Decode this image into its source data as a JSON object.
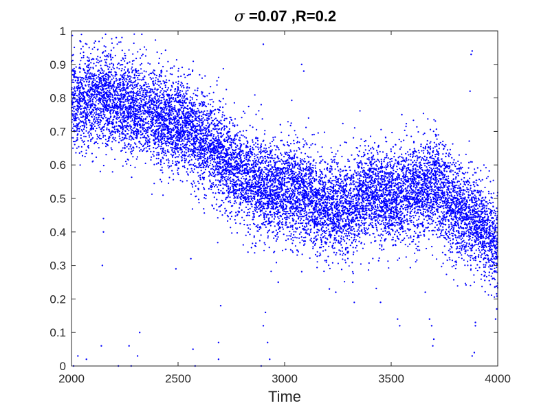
{
  "chart_data": {
    "type": "scatter",
    "title_symbol": "σ",
    "title_rest": " =0.07 ,R=0.2",
    "xlabel": "Time",
    "ylabel": "",
    "xlim": [
      2000,
      4000
    ],
    "ylim": [
      0,
      1
    ],
    "xticks": [
      "2000",
      "2500",
      "3000",
      "3500",
      "4000"
    ],
    "yticks": [
      "0",
      "0.1",
      "0.2",
      "0.3",
      "0.4",
      "0.5",
      "0.6",
      "0.7",
      "0.8",
      "0.9",
      "1"
    ],
    "grid": false,
    "marker_color": "#0000ff",
    "trend": {
      "x": [
        2000,
        2150,
        2250,
        2350,
        2500,
        2650,
        2800,
        2900,
        3000,
        3100,
        3200,
        3300,
        3400,
        3500,
        3600,
        3700,
        3800,
        3900,
        4000
      ],
      "y": [
        0.79,
        0.8,
        0.78,
        0.76,
        0.72,
        0.66,
        0.57,
        0.53,
        0.53,
        0.51,
        0.47,
        0.47,
        0.52,
        0.5,
        0.51,
        0.54,
        0.47,
        0.43,
        0.36
      ]
    },
    "spread": 0.07,
    "point_count": 12000,
    "outliers": [
      {
        "x": 2010,
        "y": 0.0
      },
      {
        "x": 2030,
        "y": 0.03
      },
      {
        "x": 2070,
        "y": 0.02
      },
      {
        "x": 2140,
        "y": 0.06
      },
      {
        "x": 2145,
        "y": 0.3
      },
      {
        "x": 2150,
        "y": 0.44
      },
      {
        "x": 2150,
        "y": 0.4
      },
      {
        "x": 2220,
        "y": 0.0
      },
      {
        "x": 2270,
        "y": 0.06
      },
      {
        "x": 2280,
        "y": 0.0
      },
      {
        "x": 2310,
        "y": 0.03
      },
      {
        "x": 2320,
        "y": 0.1
      },
      {
        "x": 2490,
        "y": 0.29
      },
      {
        "x": 2560,
        "y": 0.32
      },
      {
        "x": 2570,
        "y": 0.05
      },
      {
        "x": 2580,
        "y": 0.0
      },
      {
        "x": 2690,
        "y": 0.07
      },
      {
        "x": 2700,
        "y": 0.18
      },
      {
        "x": 2690,
        "y": 0.02
      },
      {
        "x": 2890,
        "y": 0.0
      },
      {
        "x": 2900,
        "y": 0.12
      },
      {
        "x": 2910,
        "y": 0.16
      },
      {
        "x": 2920,
        "y": 0.07
      },
      {
        "x": 2930,
        "y": 0.02
      },
      {
        "x": 2970,
        "y": 0.25
      },
      {
        "x": 2900,
        "y": 0.96
      },
      {
        "x": 2890,
        "y": 0.78
      },
      {
        "x": 3090,
        "y": 0.88
      },
      {
        "x": 3080,
        "y": 0.9
      },
      {
        "x": 2980,
        "y": 0.72
      },
      {
        "x": 3210,
        "y": 0.23
      },
      {
        "x": 3240,
        "y": 0.22
      },
      {
        "x": 3320,
        "y": 0.25
      },
      {
        "x": 3450,
        "y": 0.19
      },
      {
        "x": 3530,
        "y": 0.14
      },
      {
        "x": 3540,
        "y": 0.12
      },
      {
        "x": 3550,
        "y": 0.75
      },
      {
        "x": 3660,
        "y": 0.22
      },
      {
        "x": 3680,
        "y": 0.14
      },
      {
        "x": 3690,
        "y": 0.12
      },
      {
        "x": 3700,
        "y": 0.08
      },
      {
        "x": 3695,
        "y": 0.06
      },
      {
        "x": 3870,
        "y": 0.82
      },
      {
        "x": 3875,
        "y": 0.93
      },
      {
        "x": 3880,
        "y": 0.94
      },
      {
        "x": 3880,
        "y": 0.03
      },
      {
        "x": 3890,
        "y": 0.04
      },
      {
        "x": 3895,
        "y": 0.13
      },
      {
        "x": 3895,
        "y": 0.12
      },
      {
        "x": 3990,
        "y": 0.14
      },
      {
        "x": 3995,
        "y": 0.17
      },
      {
        "x": 2330,
        "y": 0.99
      },
      {
        "x": 2160,
        "y": 0.99
      },
      {
        "x": 2210,
        "y": 0.98
      },
      {
        "x": 2040,
        "y": 0.97
      }
    ]
  }
}
